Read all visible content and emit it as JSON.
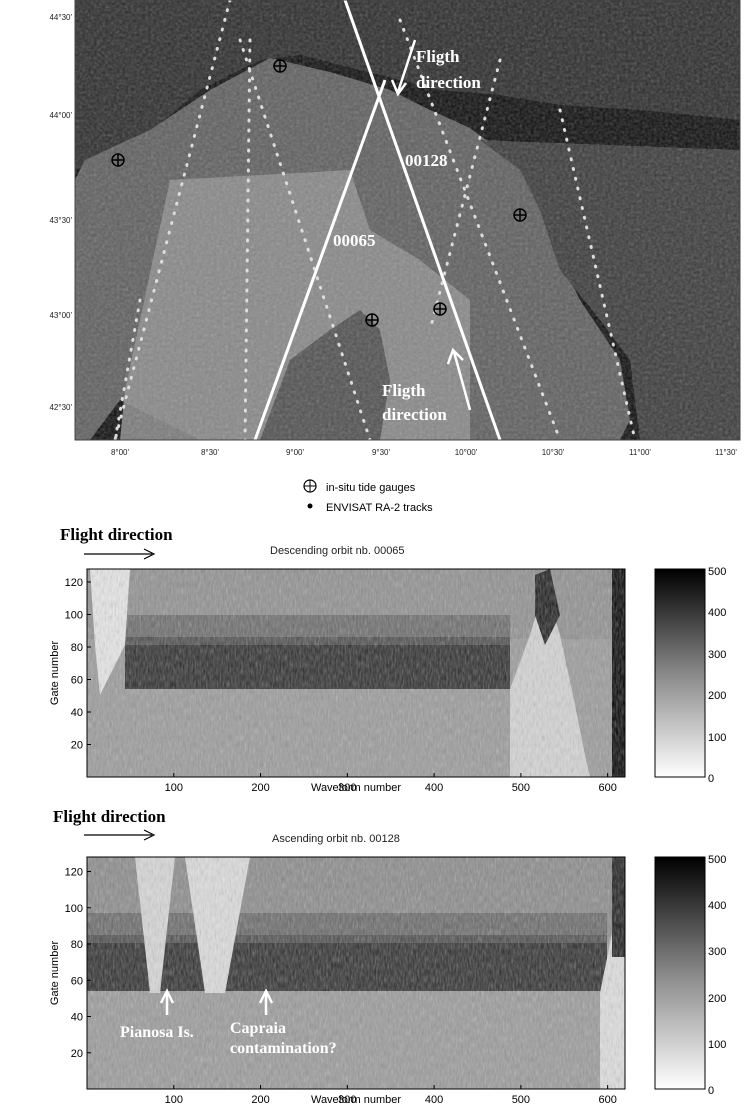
{
  "map": {
    "lat_labels": [
      "44°30'",
      "44°00'",
      "43°30'",
      "43°00'",
      "42°30'"
    ],
    "lon_labels": [
      "8°00'",
      "8°30'",
      "9°00'",
      "9°30'",
      "10°00'",
      "10°30'",
      "11°00'",
      "11°30'"
    ],
    "annotations": {
      "flight_top_1": "Fligth",
      "flight_top_2": "direction",
      "track_00128": "00128",
      "track_00065": "00065",
      "flight_bottom_1": "Fligth",
      "flight_bottom_2": "direction"
    },
    "legend": {
      "gauges": "in-situ tide gauges",
      "tracks": "ENVISAT RA-2 tracks"
    }
  },
  "colors": {
    "sea": "#5a5a5a",
    "land_dark": "#151515",
    "swath": "#9a9a9a",
    "track_line": "#ffffff"
  },
  "chart_data": [
    {
      "type": "heatmap",
      "title": "Descending orbit nb. 00065",
      "header": "Flight direction",
      "xlabel": "Waveform number",
      "ylabel": "Gate number",
      "x_ticks": [
        100,
        200,
        300,
        400,
        500,
        600
      ],
      "y_ticks": [
        20,
        40,
        60,
        80,
        100,
        120
      ],
      "xlim": [
        0,
        620
      ],
      "ylim": [
        0,
        128
      ],
      "colorbar_ticks": [
        "500",
        "400",
        "300",
        "200",
        "100",
        "0"
      ],
      "colorbar_range": [
        0,
        500
      ]
    },
    {
      "type": "heatmap",
      "title": "Ascending orbit nb. 00128",
      "header": "Flight direction",
      "xlabel": "Waveform number",
      "ylabel": "Gate number",
      "x_ticks": [
        100,
        200,
        300,
        400,
        500,
        600
      ],
      "y_ticks": [
        20,
        40,
        60,
        80,
        100,
        120
      ],
      "xlim": [
        0,
        620
      ],
      "ylim": [
        0,
        128
      ],
      "colorbar_ticks": [
        "500",
        "400",
        "300",
        "200",
        "100",
        "0"
      ],
      "colorbar_range": [
        0,
        500
      ],
      "annotations": [
        "Pianosa Is.",
        "Capraia",
        "contamination?"
      ]
    }
  ]
}
